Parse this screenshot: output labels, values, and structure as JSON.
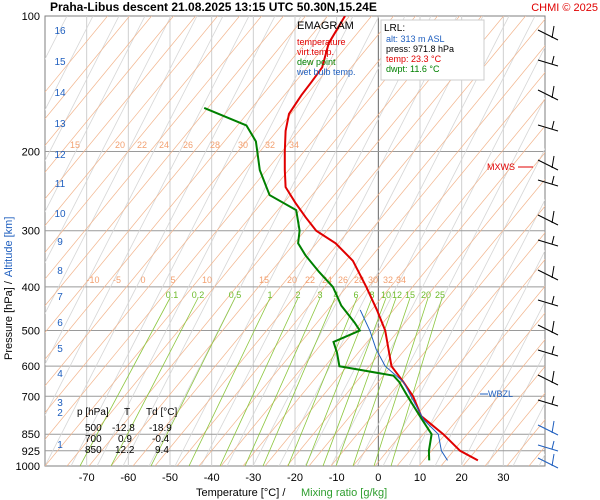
{
  "header": {
    "title": "Praha-Libus   descent   21.08.2025 13:15 UTC  50.30N,15.24E",
    "copyright": "CHMI © 2025"
  },
  "legend": {
    "title": "EMAGRAM",
    "items": [
      {
        "label": "temperature",
        "color": "#e00000"
      },
      {
        "label": "virt.temp.",
        "color": "#e00000"
      },
      {
        "label": "dew point",
        "color": "#008000"
      },
      {
        "label": "wet bulb temp.",
        "color": "#1f5fbf"
      }
    ]
  },
  "lrl": {
    "title": "LRL:",
    "alt": "alt: 313 m ASL",
    "press": "press: 971.8 hPa",
    "temp": "temp: 23.3 °C",
    "dwpt": "dwpt: 11.6 °C"
  },
  "markers": {
    "mxws": "MXWS",
    "wbzl": "WBZL"
  },
  "table": {
    "headers": [
      "p [hPa]",
      "T",
      "Td [°C]"
    ],
    "rows": [
      [
        "500",
        "-12.8",
        "-18.9"
      ],
      [
        "700",
        "0.9",
        "-0.4"
      ],
      [
        "850",
        "12.2",
        "9.4"
      ]
    ]
  },
  "axes": {
    "xlabel": "Temperature [°C]  /",
    "xlabel2": "Mixing ratio [g/kg]",
    "ylabel": "Pressure [hPa]  /",
    "ylabel2": "Altitude [km]"
  },
  "chart_data": {
    "type": "line",
    "scale_y": "log pressure",
    "xlim": [
      -80,
      40
    ],
    "ylim": [
      1000,
      100
    ],
    "x_ticks": [
      -70,
      -60,
      -50,
      -40,
      -30,
      -20,
      -10,
      0,
      10,
      20,
      30
    ],
    "pressure_ticks": [
      100,
      200,
      300,
      400,
      500,
      600,
      700,
      850,
      925,
      1000
    ],
    "altitude_ticks_km": [
      1,
      2,
      3,
      4,
      5,
      6,
      7,
      8,
      9,
      10,
      11,
      12,
      13,
      14,
      15,
      16
    ],
    "mixing_ratio_labels": [
      "0.1",
      "0.2",
      "0.5",
      "1",
      "2",
      "3",
      "4",
      "6",
      "8",
      "10",
      "12",
      "15",
      "20",
      "25"
    ],
    "dry_adiabat_labels_upper": [
      "15",
      "20",
      "22",
      "24",
      "26",
      "28",
      "30",
      "32",
      "34"
    ],
    "dry_adiabat_labels_lower": [
      "-10",
      "-5",
      "0",
      "5",
      "10",
      "15",
      "20",
      "22",
      "24",
      "26",
      "28",
      "30",
      "32",
      "34"
    ],
    "series": [
      {
        "name": "temperature",
        "color": "#e00000",
        "points": [
          [
            23.3,
            971.8
          ],
          [
            18,
            925
          ],
          [
            12.2,
            850
          ],
          [
            5,
            775
          ],
          [
            0.9,
            700
          ],
          [
            -3,
            650
          ],
          [
            -7.5,
            600
          ],
          [
            -12.8,
            500
          ],
          [
            -17,
            450
          ],
          [
            -22,
            400
          ],
          [
            -28,
            350
          ],
          [
            -34,
            320
          ],
          [
            -40,
            300
          ],
          [
            -44,
            280
          ],
          [
            -48,
            260
          ],
          [
            -52,
            240
          ],
          [
            -54,
            220
          ],
          [
            -56,
            200
          ],
          [
            -58,
            180
          ],
          [
            -59,
            165
          ],
          [
            -58,
            150
          ],
          [
            -57,
            140
          ],
          [
            -56,
            130
          ],
          [
            -57,
            115
          ],
          [
            -56,
            100
          ]
        ]
      },
      {
        "name": "dew point",
        "color": "#008000",
        "points": [
          [
            11.6,
            971.8
          ],
          [
            10.5,
            925
          ],
          [
            9.4,
            850
          ],
          [
            5,
            780
          ],
          [
            -0.4,
            700
          ],
          [
            -4,
            650
          ],
          [
            -6,
            630
          ],
          [
            -20,
            600
          ],
          [
            -22,
            560
          ],
          [
            -24,
            530
          ],
          [
            -18.9,
            500
          ],
          [
            -21,
            480
          ],
          [
            -26,
            440
          ],
          [
            -30,
            400
          ],
          [
            -35,
            370
          ],
          [
            -40,
            340
          ],
          [
            -43,
            320
          ],
          [
            -44,
            300
          ],
          [
            -47,
            270
          ],
          [
            -55,
            250
          ],
          [
            -60,
            220
          ],
          [
            -64,
            190
          ],
          [
            -68,
            175
          ],
          [
            -80,
            160
          ]
        ]
      },
      {
        "name": "wet bulb temp.",
        "color": "#1f5fbf",
        "points": [
          [
            16,
            971.8
          ],
          [
            13.5,
            925
          ],
          [
            11,
            850
          ],
          [
            6,
            790
          ],
          [
            0.4,
            700
          ],
          [
            -3,
            650
          ],
          [
            -9,
            600
          ],
          [
            -13,
            550
          ],
          [
            -16.5,
            500
          ],
          [
            -21,
            450
          ]
        ]
      }
    ]
  }
}
